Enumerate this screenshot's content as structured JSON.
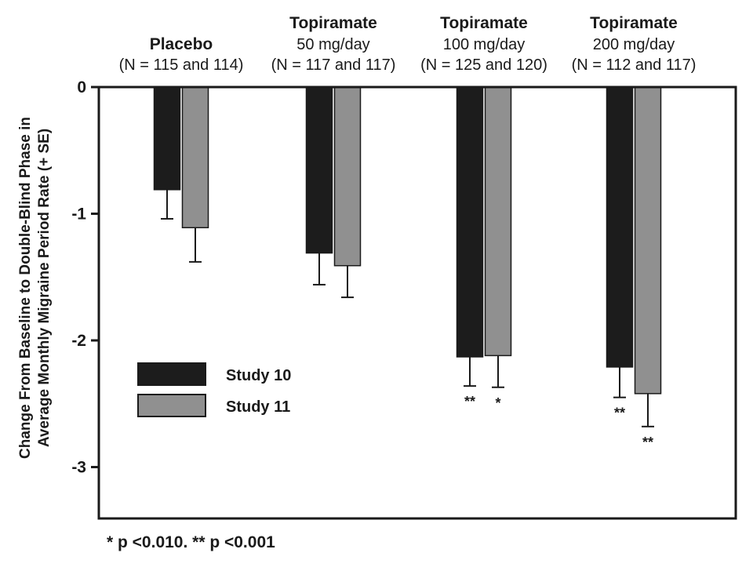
{
  "chart_data": {
    "type": "bar",
    "title": "",
    "xlabel": "",
    "ylabel_lines": [
      "Change From Baseline to Double-Blind Phase in",
      "Average Monthly Migraine Period Rate (+ SE)"
    ],
    "ylim": [
      -3.4,
      0
    ],
    "yticks": [
      "0",
      "-1",
      "-2",
      "-3"
    ],
    "groups": [
      {
        "name": "Placebo",
        "line2": "(N = 115 and 114)"
      },
      {
        "name": "Topiramate",
        "line1": "50 mg/day",
        "line2": "(N = 117 and 117)"
      },
      {
        "name": "Topiramate",
        "line1": "100 mg/day",
        "line2": "(N = 125 and 120)"
      },
      {
        "name": "Topiramate",
        "line1": "200 mg/day",
        "line2": "(N = 112 and 117)"
      }
    ],
    "series": [
      {
        "name": "Study 10",
        "color": "#1c1c1c",
        "values": [
          -0.81,
          -1.31,
          -2.13,
          -2.21
        ],
        "se": [
          0.23,
          0.25,
          0.23,
          0.24
        ],
        "significance": [
          "",
          "",
          "**",
          "**"
        ]
      },
      {
        "name": "Study 11",
        "color": "#909090",
        "values": [
          -1.11,
          -1.41,
          -2.12,
          -2.42
        ],
        "se": [
          0.27,
          0.25,
          0.25,
          0.26
        ],
        "significance": [
          "",
          "",
          "*",
          "**"
        ]
      }
    ],
    "legend_position": "lower-left",
    "footnote": "* p <0.010. ** p <0.001"
  }
}
